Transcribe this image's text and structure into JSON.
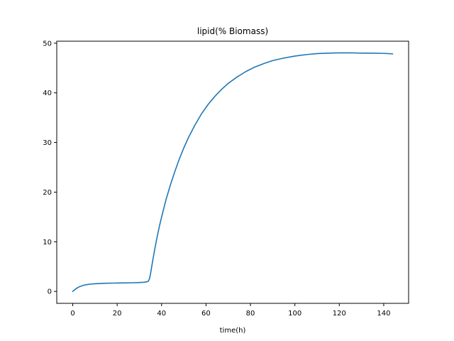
{
  "chart_data": {
    "type": "line",
    "title": "lipid(% Biomass)",
    "xlabel": "time(h)",
    "ylabel": "",
    "xlim": [
      -7.2,
      151.2
    ],
    "ylim": [
      -2.4,
      50.4
    ],
    "xticks": [
      0,
      20,
      40,
      60,
      80,
      100,
      120,
      140
    ],
    "yticks": [
      0,
      10,
      20,
      30,
      40,
      50
    ],
    "grid": false,
    "legend": "none",
    "series": [
      {
        "color": "#1f77b4",
        "x": [
          0,
          1,
          2,
          3,
          4,
          5,
          6,
          8,
          10,
          12,
          15,
          18,
          21,
          24,
          27,
          30,
          32,
          33,
          34,
          34.5,
          35,
          36,
          37,
          38,
          39,
          40,
          42,
          44,
          46,
          48,
          50,
          52,
          55,
          58,
          61,
          64,
          67,
          70,
          74,
          78,
          82,
          86,
          90,
          95,
          100,
          105,
          110,
          115,
          120,
          125,
          130,
          135,
          140,
          144
        ],
        "y": [
          0,
          0.4,
          0.7,
          0.95,
          1.1,
          1.25,
          1.35,
          1.48,
          1.55,
          1.6,
          1.65,
          1.68,
          1.7,
          1.72,
          1.75,
          1.8,
          1.85,
          1.9,
          2.05,
          2.5,
          3.5,
          6.2,
          8.7,
          11.0,
          13.1,
          15.0,
          18.5,
          21.5,
          24.2,
          26.7,
          28.9,
          30.9,
          33.5,
          35.8,
          37.7,
          39.3,
          40.7,
          41.9,
          43.2,
          44.3,
          45.2,
          45.9,
          46.5,
          47.0,
          47.4,
          47.7,
          47.9,
          48.0,
          48.05,
          48.05,
          48.0,
          48.0,
          47.95,
          47.85
        ]
      }
    ]
  }
}
